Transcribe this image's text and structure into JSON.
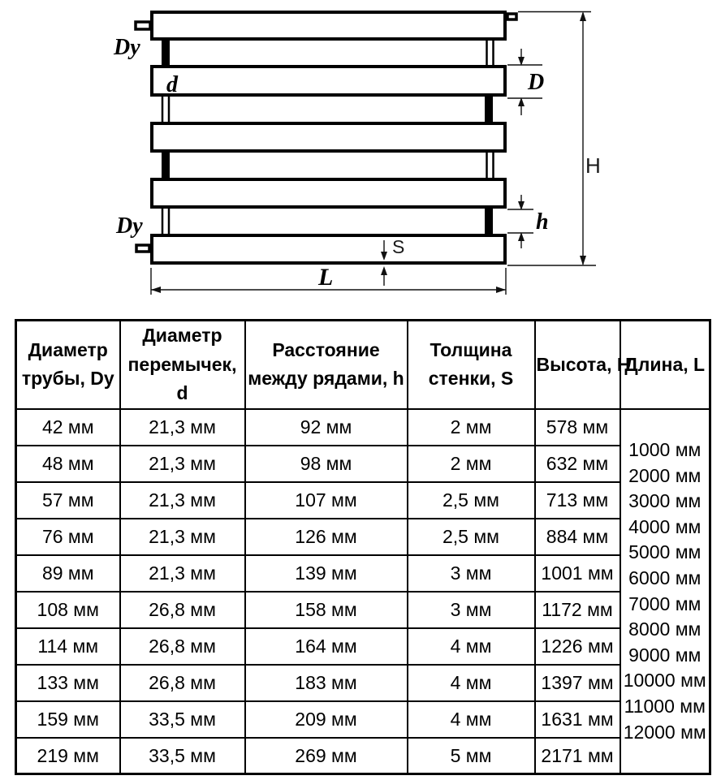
{
  "diagram": {
    "labels": {
      "dy_top": "Dy",
      "dy_bottom": "Dy",
      "d": "d",
      "D": "D",
      "h": "h",
      "H": "H",
      "S": "S",
      "L": "L"
    }
  },
  "table": {
    "headers": [
      "Диаметр трубы, Dy",
      "Диаметр перемычек, d",
      "Расстояние между рядами, h",
      "Толщина стенки, S",
      "Высота, H",
      "Длина, L"
    ],
    "rows": [
      [
        "42 мм",
        "21,3 мм",
        "92 мм",
        "2 мм",
        "578 мм"
      ],
      [
        "48 мм",
        "21,3 мм",
        "98 мм",
        "2 мм",
        "632 мм"
      ],
      [
        "57 мм",
        "21,3 мм",
        "107 мм",
        "2,5 мм",
        "713 мм"
      ],
      [
        "76 мм",
        "21,3 мм",
        "126 мм",
        "2,5 мм",
        "884 мм"
      ],
      [
        "89 мм",
        "21,3 мм",
        "139 мм",
        "3 мм",
        "1001 мм"
      ],
      [
        "108 мм",
        "26,8 мм",
        "158 мм",
        "3 мм",
        "1172 мм"
      ],
      [
        "114 мм",
        "26,8 мм",
        "164 мм",
        "4 мм",
        "1226 мм"
      ],
      [
        "133 мм",
        "26,8 мм",
        "183 мм",
        "4 мм",
        "1397 мм"
      ],
      [
        "159 мм",
        "33,5 мм",
        "209 мм",
        "4 мм",
        "1631 мм"
      ],
      [
        "219 мм",
        "33,5 мм",
        "269 мм",
        "5 мм",
        "2171 мм"
      ]
    ],
    "lengths": [
      "1000 мм",
      "2000 мм",
      "3000 мм",
      "4000 мм",
      "5000 мм",
      "6000 мм",
      "7000 мм",
      "8000 мм",
      "9000 мм",
      "10000 мм",
      "11000 мм",
      "12000 мм"
    ]
  },
  "colors": {
    "ink": "#000000",
    "paper": "#ffffff"
  }
}
